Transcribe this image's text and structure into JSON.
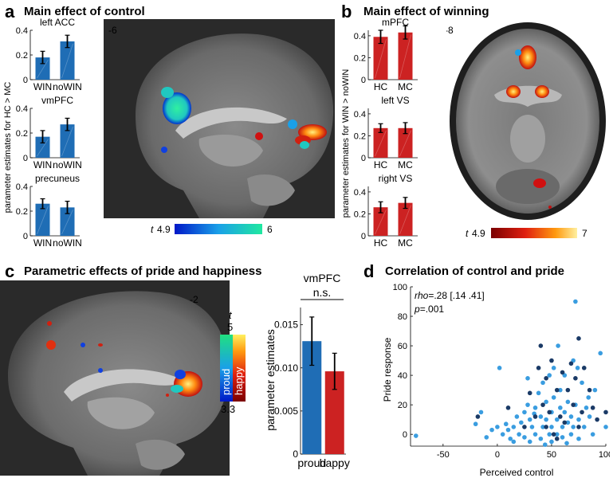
{
  "panels": {
    "a": {
      "letter": "a",
      "title": "Main effect of control",
      "slice": "-6",
      "ylabel": "parameter estimates for HC > MC",
      "colorbar": {
        "t_label": "t",
        "min": "4.9",
        "max": "6",
        "colors": [
          "#0018c8",
          "#1aa0e8",
          "#20e8a0"
        ]
      },
      "charts": [
        {
          "type": "bar",
          "title": "left ACC",
          "categories": [
            "WIN",
            "noWIN"
          ],
          "values": [
            0.18,
            0.31
          ],
          "errors": [
            0.05,
            0.05
          ],
          "ylim": [
            0,
            0.4
          ],
          "yticks": [
            "0",
            "0.2",
            "0.4"
          ],
          "color": "#1f6db5"
        },
        {
          "type": "bar",
          "title": "vmPFC",
          "categories": [
            "WIN",
            "noWIN"
          ],
          "values": [
            0.17,
            0.27
          ],
          "errors": [
            0.05,
            0.05
          ],
          "ylim": [
            0,
            0.4
          ],
          "yticks": [
            "0",
            "0.2",
            "0.4"
          ],
          "color": "#1f6db5"
        },
        {
          "type": "bar",
          "title": "precuneus",
          "categories": [
            "WIN",
            "noWIN"
          ],
          "values": [
            0.26,
            0.23
          ],
          "errors": [
            0.04,
            0.05
          ],
          "ylim": [
            0,
            0.4
          ],
          "yticks": [
            "0",
            "0.2",
            "0.4"
          ],
          "color": "#1f6db5"
        }
      ]
    },
    "b": {
      "letter": "b",
      "title": "Main effect of winning",
      "slice": "-8",
      "ylabel": "parameter estimates for WIN > noWIN",
      "colorbar": {
        "t_label": "t",
        "min": "4.9",
        "max": "7",
        "colors": [
          "#7a0000",
          "#e02010",
          "#ff9a10",
          "#fff0a0"
        ]
      },
      "charts": [
        {
          "type": "bar",
          "title": "mPFC",
          "categories": [
            "HC",
            "MC"
          ],
          "values": [
            0.39,
            0.43
          ],
          "errors": [
            0.06,
            0.06
          ],
          "ylim": [
            0,
            0.45
          ],
          "yticks": [
            "0",
            "0.2",
            "0.4"
          ],
          "color": "#cc2222"
        },
        {
          "type": "bar",
          "title": "left VS",
          "categories": [
            "HC",
            "MC"
          ],
          "values": [
            0.27,
            0.27
          ],
          "errors": [
            0.04,
            0.05
          ],
          "ylim": [
            0,
            0.45
          ],
          "yticks": [
            "0",
            "0.2",
            "0.4"
          ],
          "color": "#cc2222"
        },
        {
          "type": "bar",
          "title": "right VS",
          "categories": [
            "HC",
            "MC"
          ],
          "values": [
            0.26,
            0.3
          ],
          "errors": [
            0.05,
            0.05
          ],
          "ylim": [
            0,
            0.45
          ],
          "yticks": [
            "0",
            "0.2",
            "0.4"
          ],
          "color": "#cc2222"
        }
      ]
    },
    "c": {
      "letter": "c",
      "title": "Parametric effects of pride and happiness",
      "slice": "-2",
      "colorbar": {
        "t_label": "t",
        "max": "5",
        "min": "3.3",
        "proud_label": "proud",
        "happy_label": "happy"
      },
      "chart": {
        "type": "bar",
        "title": "vmPFC",
        "annotation": "n.s.",
        "categories": [
          "proud",
          "happy"
        ],
        "values": [
          0.0131,
          0.0096
        ],
        "errors": [
          0.0028,
          0.0021
        ],
        "ylim": [
          0,
          0.017
        ],
        "yticks": [
          "0",
          "0.005",
          "0.010",
          "0.015"
        ],
        "ylabel": "parameter estimates",
        "colors": [
          "#1f6db5",
          "#cc2222"
        ]
      }
    },
    "d": {
      "letter": "d",
      "title": "Correlation of control and pride",
      "stat_rho_label": "rho",
      "stat_rho_value": "=.28 [.14 .41]",
      "stat_p_label": "p",
      "stat_p_value": "=.001"
    }
  },
  "chart_data": [
    {
      "type": "bar",
      "title": "left ACC",
      "categories": [
        "WIN",
        "noWIN"
      ],
      "values": [
        0.18,
        0.31
      ],
      "ylabel": "parameter estimates for HC > MC",
      "ylim": [
        0,
        0.4
      ]
    },
    {
      "type": "bar",
      "title": "vmPFC",
      "categories": [
        "WIN",
        "noWIN"
      ],
      "values": [
        0.17,
        0.27
      ],
      "ylabel": "parameter estimates for HC > MC",
      "ylim": [
        0,
        0.4
      ]
    },
    {
      "type": "bar",
      "title": "precuneus",
      "categories": [
        "WIN",
        "noWIN"
      ],
      "values": [
        0.26,
        0.23
      ],
      "ylabel": "parameter estimates for HC > MC",
      "ylim": [
        0,
        0.4
      ]
    },
    {
      "type": "bar",
      "title": "mPFC",
      "categories": [
        "HC",
        "MC"
      ],
      "values": [
        0.39,
        0.43
      ],
      "ylabel": "parameter estimates for WIN > noWIN",
      "ylim": [
        0,
        0.45
      ]
    },
    {
      "type": "bar",
      "title": "left VS",
      "categories": [
        "HC",
        "MC"
      ],
      "values": [
        0.27,
        0.27
      ],
      "ylabel": "parameter estimates for WIN > noWIN",
      "ylim": [
        0,
        0.45
      ]
    },
    {
      "type": "bar",
      "title": "right VS",
      "categories": [
        "HC",
        "MC"
      ],
      "values": [
        0.26,
        0.3
      ],
      "ylabel": "parameter estimates for WIN > noWIN",
      "ylim": [
        0,
        0.45
      ]
    },
    {
      "type": "bar",
      "title": "vmPFC",
      "categories": [
        "proud",
        "happy"
      ],
      "values": [
        0.0131,
        0.0096
      ],
      "ylabel": "parameter estimates",
      "ylim": [
        0,
        0.017
      ]
    },
    {
      "type": "scatter",
      "title": "Correlation of control and pride",
      "xlabel": "Perceived control",
      "ylabel": "Pride response",
      "xlim": [
        -80,
        100
      ],
      "ylim": [
        -8,
        100
      ],
      "xticks": [
        "-50",
        "0",
        "50",
        "100"
      ],
      "yticks": [
        "0",
        "20",
        "40",
        "60",
        "80",
        "100"
      ],
      "series": [
        {
          "color": "#3a9de0",
          "points": [
            [
              -75,
              -1
            ],
            [
              -20,
              7
            ],
            [
              -15,
              15
            ],
            [
              -5,
              3
            ],
            [
              0,
              5
            ],
            [
              2,
              45
            ],
            [
              5,
              0
            ],
            [
              8,
              7
            ],
            [
              10,
              3
            ],
            [
              12,
              -3
            ],
            [
              15,
              5
            ],
            [
              18,
              12
            ],
            [
              20,
              0
            ],
            [
              22,
              8
            ],
            [
              25,
              15
            ],
            [
              25,
              -2
            ],
            [
              28,
              20
            ],
            [
              30,
              10
            ],
            [
              30,
              -5
            ],
            [
              32,
              5
            ],
            [
              35,
              18
            ],
            [
              35,
              0
            ],
            [
              38,
              28
            ],
            [
              40,
              12
            ],
            [
              40,
              -3
            ],
            [
              42,
              5
            ],
            [
              42,
              35
            ],
            [
              45,
              22
            ],
            [
              45,
              10
            ],
            [
              48,
              0
            ],
            [
              48,
              40
            ],
            [
              50,
              15
            ],
            [
              50,
              5
            ],
            [
              50,
              -5
            ],
            [
              52,
              25
            ],
            [
              52,
              45
            ],
            [
              55,
              10
            ],
            [
              55,
              0
            ],
            [
              58,
              18
            ],
            [
              58,
              30
            ],
            [
              60,
              5
            ],
            [
              60,
              -2
            ],
            [
              62,
              15
            ],
            [
              62,
              40
            ],
            [
              65,
              8
            ],
            [
              65,
              22
            ],
            [
              68,
              0
            ],
            [
              68,
              12
            ],
            [
              70,
              50
            ],
            [
              70,
              5
            ],
            [
              72,
              90
            ],
            [
              72,
              20
            ],
            [
              75,
              10
            ],
            [
              75,
              -3
            ],
            [
              78,
              35
            ],
            [
              80,
              5
            ],
            [
              82,
              18
            ],
            [
              85,
              12
            ],
            [
              88,
              0
            ],
            [
              90,
              30
            ],
            [
              95,
              55
            ],
            [
              100,
              5
            ],
            [
              -10,
              -2
            ],
            [
              15,
              -5
            ],
            [
              28,
              38
            ],
            [
              34,
              14
            ],
            [
              44,
              -7
            ],
            [
              56,
              60
            ],
            [
              64,
              -6
            ],
            [
              74,
              45
            ],
            [
              84,
              25
            ]
          ]
        },
        {
          "color": "#1a3a66",
          "points": [
            [
              -18,
              12
            ],
            [
              10,
              18
            ],
            [
              25,
              5
            ],
            [
              30,
              28
            ],
            [
              35,
              12
            ],
            [
              38,
              45
            ],
            [
              40,
              60
            ],
            [
              42,
              20
            ],
            [
              45,
              5
            ],
            [
              48,
              15
            ],
            [
              50,
              50
            ],
            [
              52,
              0
            ],
            [
              55,
              30
            ],
            [
              58,
              12
            ],
            [
              60,
              42
            ],
            [
              62,
              8
            ],
            [
              65,
              30
            ],
            [
              68,
              48
            ],
            [
              70,
              20
            ],
            [
              72,
              38
            ],
            [
              75,
              5
            ],
            [
              75,
              65
            ],
            [
              78,
              15
            ],
            [
              80,
              45
            ],
            [
              85,
              30
            ],
            [
              88,
              18
            ],
            [
              92,
              10
            ],
            [
              100,
              15
            ],
            [
              55,
              -3
            ],
            [
              45,
              38
            ]
          ]
        }
      ]
    }
  ]
}
